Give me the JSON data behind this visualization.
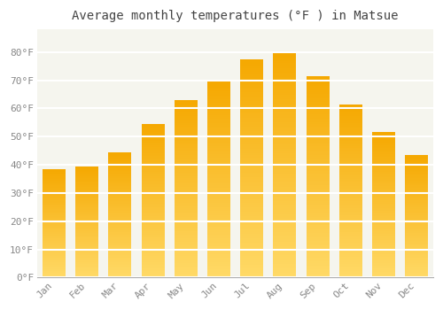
{
  "title": "Average monthly temperatures (°F ) in Matsue",
  "months": [
    "Jan",
    "Feb",
    "Mar",
    "Apr",
    "May",
    "Jun",
    "Jul",
    "Aug",
    "Sep",
    "Oct",
    "Nov",
    "Dec"
  ],
  "values": [
    38.5,
    39.5,
    44.5,
    54.5,
    63.0,
    69.5,
    77.5,
    80.0,
    71.5,
    61.5,
    51.5,
    43.5
  ],
  "bar_color_top": "#F5A800",
  "bar_color_bottom": "#FFD966",
  "ylim": [
    0,
    88
  ],
  "yticks": [
    0,
    10,
    20,
    30,
    40,
    50,
    60,
    70,
    80
  ],
  "ytick_labels": [
    "0°F",
    "10°F",
    "20°F",
    "30°F",
    "40°F",
    "50°F",
    "60°F",
    "70°F",
    "80°F"
  ],
  "background_color": "#ffffff",
  "plot_bg_color": "#f5f5ee",
  "grid_color": "#ffffff",
  "title_fontsize": 10,
  "tick_fontsize": 8,
  "title_color": "#444444",
  "tick_color": "#888888",
  "bar_width": 0.7,
  "gradient_steps": 100
}
